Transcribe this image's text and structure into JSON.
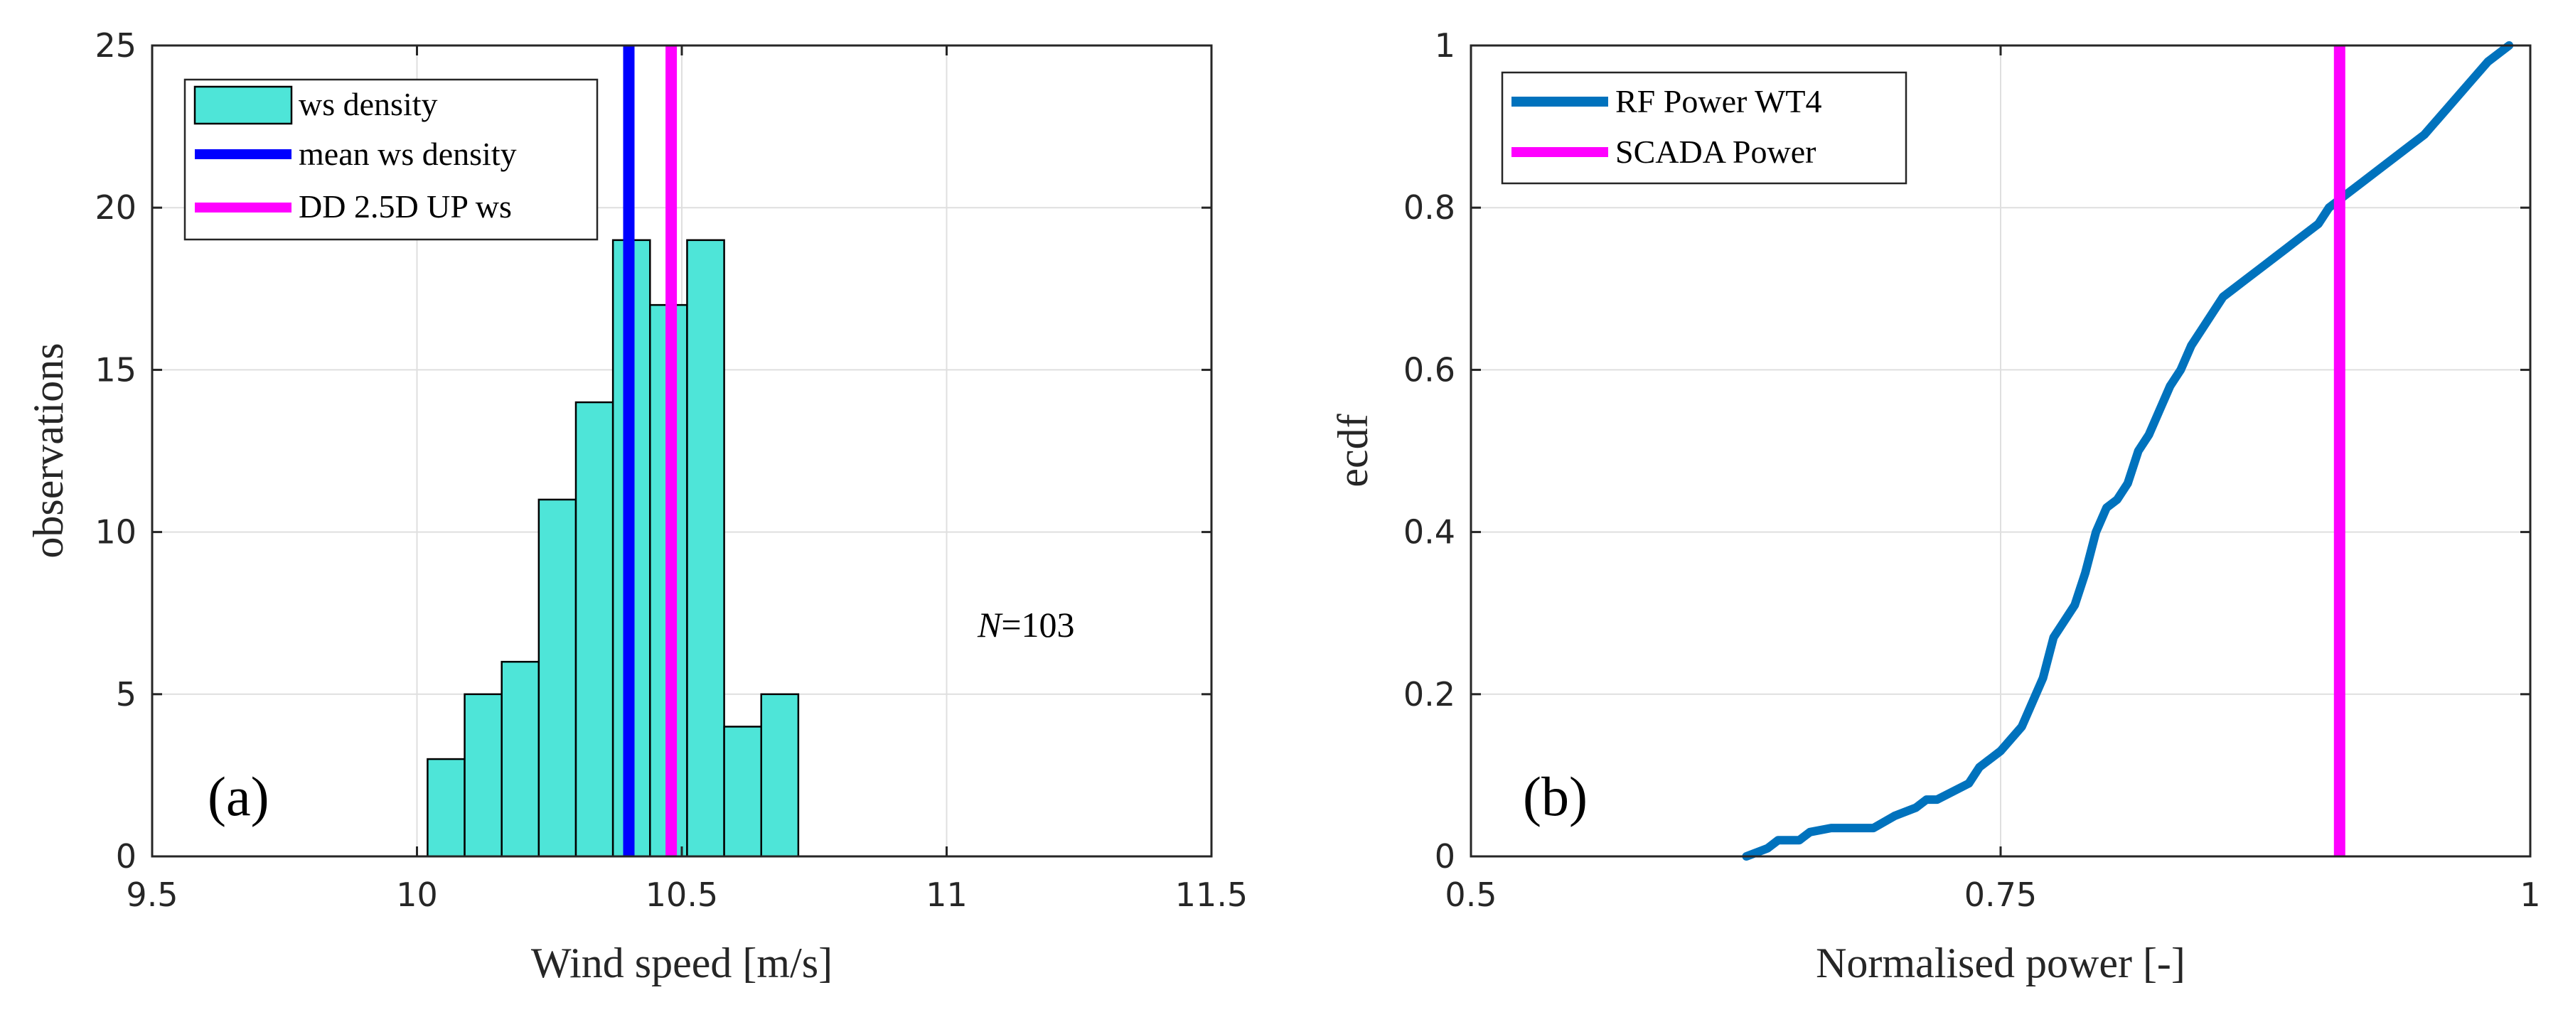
{
  "chart_data": [
    {
      "type": "bar",
      "panel_label": "(a)",
      "xlabel": "Wind speed [m/s]",
      "ylabel": "observations",
      "xlim": [
        9.5,
        11.5
      ],
      "ylim": [
        0,
        25
      ],
      "xticks": [
        "9.5",
        "10",
        "10.5",
        "11",
        "11.5"
      ],
      "yticks": [
        "0",
        "5",
        "10",
        "15",
        "20",
        "25"
      ],
      "grid": true,
      "legend_position": "top-left",
      "bin_edges": [
        10.02,
        10.09,
        10.16,
        10.23,
        10.3,
        10.37,
        10.44,
        10.51,
        10.58,
        10.65,
        10.72
      ],
      "series": [
        {
          "name": "ws density",
          "kind": "histogram",
          "color": "#4ee5d8",
          "values": [
            3,
            5,
            6,
            11,
            14,
            19,
            17,
            19,
            4,
            5
          ]
        },
        {
          "name": "mean ws density",
          "kind": "vline",
          "color": "#0000ff",
          "x": 10.4
        },
        {
          "name": "DD 2.5D UP ws",
          "kind": "vline",
          "color": "#ff00ff",
          "x": 10.48
        }
      ],
      "annotation": {
        "italic": "N",
        "text": "=103"
      }
    },
    {
      "type": "line",
      "panel_label": "(b)",
      "xlabel": "Normalised power [-]",
      "ylabel": "ecdf",
      "xlim": [
        0.5,
        1
      ],
      "ylim": [
        0,
        1
      ],
      "xticks": [
        "0.5",
        "0.75",
        "1"
      ],
      "yticks": [
        "0",
        "0.2",
        "0.4",
        "0.6",
        "0.8",
        "1"
      ],
      "grid": true,
      "legend_position": "top-left",
      "series": [
        {
          "name": "RF Power WT4",
          "color": "#0072bd",
          "x": [
            0.63,
            0.64,
            0.645,
            0.655,
            0.66,
            0.67,
            0.69,
            0.7,
            0.71,
            0.715,
            0.72,
            0.735,
            0.74,
            0.75,
            0.76,
            0.765,
            0.77,
            0.775,
            0.78,
            0.785,
            0.79,
            0.795,
            0.8,
            0.805,
            0.81,
            0.815,
            0.82,
            0.825,
            0.83,
            0.835,
            0.84,
            0.845,
            0.85,
            0.855,
            0.86,
            0.865,
            0.87,
            0.875,
            0.88,
            0.885,
            0.89,
            0.895,
            0.9,
            0.905,
            0.91,
            0.92,
            0.93,
            0.94,
            0.95,
            0.96,
            0.97,
            0.98,
            0.99
          ],
          "y": [
            0.0,
            0.01,
            0.02,
            0.02,
            0.03,
            0.035,
            0.035,
            0.05,
            0.06,
            0.07,
            0.07,
            0.09,
            0.11,
            0.13,
            0.16,
            0.19,
            0.22,
            0.27,
            0.29,
            0.31,
            0.35,
            0.4,
            0.43,
            0.44,
            0.46,
            0.5,
            0.52,
            0.55,
            0.58,
            0.6,
            0.63,
            0.65,
            0.67,
            0.69,
            0.7,
            0.71,
            0.72,
            0.73,
            0.74,
            0.75,
            0.76,
            0.77,
            0.78,
            0.8,
            0.81,
            0.83,
            0.85,
            0.87,
            0.89,
            0.92,
            0.95,
            0.98,
            1.0
          ]
        },
        {
          "name": "SCADA Power",
          "kind": "vline",
          "color": "#ff00ff",
          "x": 0.91
        }
      ]
    }
  ]
}
